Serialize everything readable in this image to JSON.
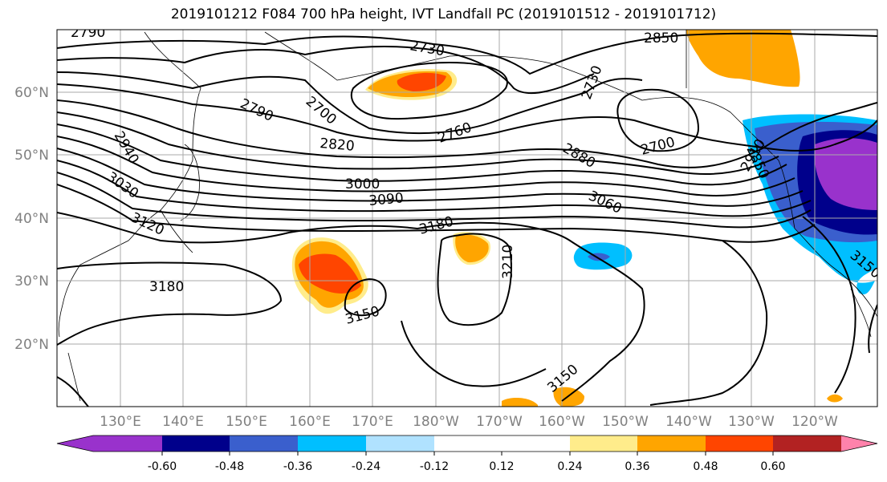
{
  "title": "2019101212 F084 700 hPa height, IVT Landfall PC (2019101512 - 2019101712)",
  "lat_labels": [
    "60°N",
    "50°N",
    "40°N",
    "30°N",
    "20°N"
  ],
  "lon_labels": [
    "130°E",
    "140°E",
    "150°E",
    "160°E",
    "170°E",
    "180°W",
    "170°W",
    "160°W",
    "150°W",
    "140°W",
    "130°W",
    "120°W"
  ],
  "contour_labels": [
    "2790",
    "2730",
    "2850",
    "2700",
    "2760",
    "2790",
    "2940",
    "2820",
    "2730",
    "2700",
    "2880",
    "3000",
    "3030",
    "3090",
    "3060",
    "3120",
    "3180",
    "3180",
    "3210",
    "3150",
    "3150",
    "2850",
    "2910",
    "3150"
  ],
  "colorbar": {
    "colors": [
      "#9932CC",
      "#00008B",
      "#3A5FCD",
      "#00BFFF",
      "#B0E2FF",
      "#FFFFFF",
      "#FFFFFF",
      "#FFEC8B",
      "#FFA500",
      "#FF4500",
      "#B22222",
      "#FF82AB"
    ],
    "tick_labels": [
      "-0.60",
      "-0.48",
      "-0.36",
      "-0.24",
      "-0.12",
      "0.12",
      "0.24",
      "0.36",
      "0.48",
      "0.60"
    ]
  }
}
